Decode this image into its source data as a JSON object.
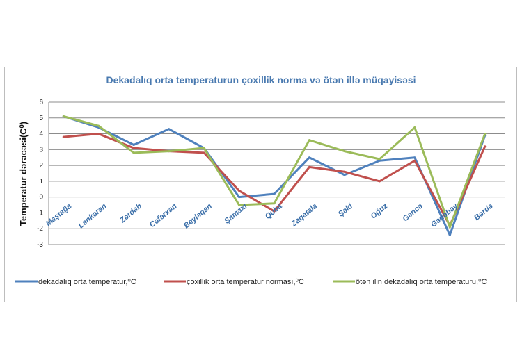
{
  "chart_data": {
    "type": "line",
    "title": "Dekadalıq orta temperaturun çoxillik   norma və ötən illə müqayisəsi",
    "xlabel": "",
    "ylabel": "Temperatur dərəcəsi(C⁰)",
    "ylim": [
      -3,
      6
    ],
    "yticks": [
      6,
      5,
      4,
      3,
      2,
      1,
      0,
      -1,
      -2,
      -3
    ],
    "grid": true,
    "legend_position": "bottom",
    "categories": [
      "Maştağa",
      "Lənkəran",
      "Zərdab",
      "Cəfərxan",
      "Beyləqan",
      "Şamaxı",
      "Quba",
      "Zaqatala",
      "Şəki",
      "Oğuz",
      "Gəncə",
      "Gədəbəy",
      "Bərdə"
    ],
    "series": [
      {
        "name": "dekadalıq orta temperatur,⁰C",
        "color": "#4f81bd",
        "values": [
          5.1,
          4.4,
          3.3,
          4.3,
          3.1,
          0.0,
          0.2,
          2.5,
          1.4,
          2.3,
          2.5,
          -2.4,
          3.9
        ]
      },
      {
        "name": "çoxillik orta temperatur norması,⁰C",
        "color": "#c0504d",
        "values": [
          3.8,
          4.0,
          3.1,
          2.9,
          2.8,
          0.4,
          -0.9,
          1.9,
          1.6,
          1.0,
          2.3,
          -1.8,
          3.2
        ]
      },
      {
        "name": "ötən ilin dekadalıq orta temperaturu,⁰C",
        "color": "#9bbb59",
        "values": [
          5.1,
          4.5,
          2.8,
          2.9,
          3.1,
          -0.5,
          -0.4,
          3.6,
          2.9,
          2.4,
          4.4,
          -1.9,
          4.0
        ]
      }
    ]
  }
}
